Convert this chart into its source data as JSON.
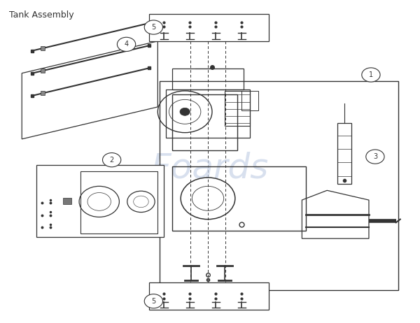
{
  "title": "Tank Assembly",
  "bg_color": "#ffffff",
  "line_color": "#333333",
  "text_color": "#333333",
  "watermark": "Foards",
  "watermark_color": "#c8d4e8",
  "figsize": [
    6.0,
    4.62
  ],
  "dpi": 100
}
